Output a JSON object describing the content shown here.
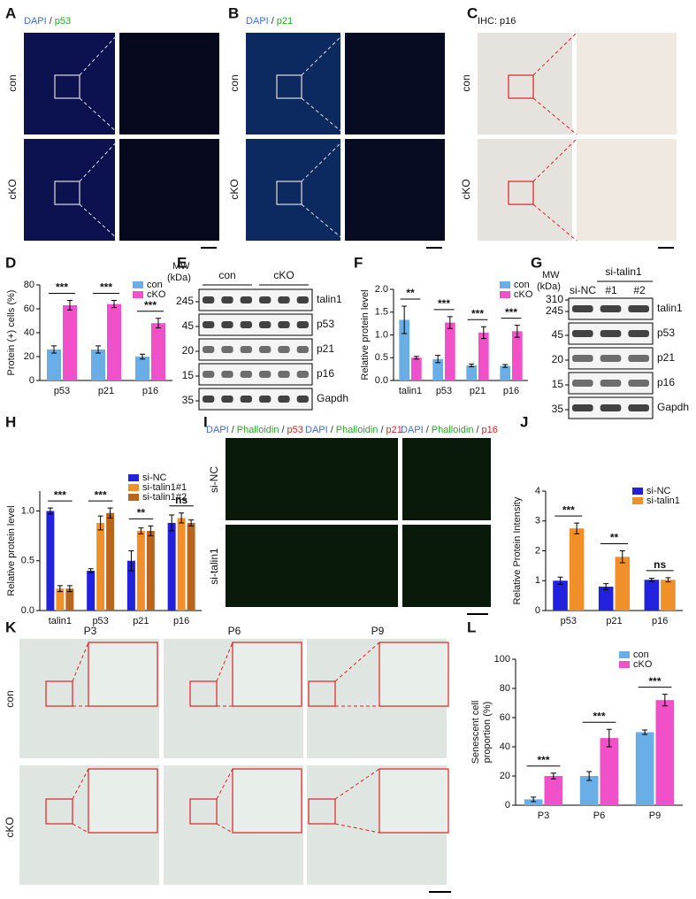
{
  "panel_labels": [
    "A",
    "B",
    "C",
    "D",
    "E",
    "F",
    "G",
    "H",
    "I",
    "J",
    "K",
    "L"
  ],
  "images": {
    "A": {
      "stain": [
        "DAPI",
        "/",
        "p53"
      ],
      "rows": [
        "con",
        "cKO"
      ]
    },
    "B": {
      "stain": [
        "DAPI",
        "/",
        "p21"
      ],
      "rows": [
        "con",
        "cKO"
      ]
    },
    "C": {
      "stain": [
        "IHC: p16"
      ],
      "rows": [
        "con",
        "cKO"
      ]
    },
    "I": {
      "columns": [
        [
          "DAPI",
          "/",
          "Phalloidin",
          "/",
          "p53"
        ],
        [
          "DAPI",
          "/",
          "Phalloidin",
          "/",
          "p21"
        ],
        [
          "DAPI",
          "/",
          "Phalloidin",
          "/",
          "p16"
        ]
      ],
      "rows": [
        "si-NC",
        "si-talin1"
      ]
    },
    "K": {
      "columns": [
        "P3",
        "P6",
        "P9"
      ],
      "rows": [
        "con",
        "cKO"
      ]
    }
  },
  "blots": [
    {
      "mw_header": [
        "MW",
        "(kDa)"
      ],
      "groups": [
        "con",
        "cKO"
      ],
      "mw": [
        245,
        45,
        20,
        15,
        35
      ],
      "bands": [
        "talin1",
        "p53",
        "p21",
        "p16",
        "Gapdh"
      ]
    },
    {
      "mw_header": [
        "MW",
        "(kDa)"
      ],
      "group": "si-talin1",
      "lanes": [
        "si-NC",
        "#1",
        "#2"
      ],
      "mw": [
        310,
        245,
        45,
        20,
        15,
        35
      ],
      "bands": [
        "talin1",
        "p53",
        "p21",
        "p16",
        "Gapdh"
      ]
    }
  ],
  "chart_data": [
    {
      "type": "bar",
      "ylabel": "Protein (+) cells (%)",
      "categories": [
        "p53",
        "p21",
        "p16"
      ],
      "series": [
        {
          "name": "con",
          "color": "#6aaee8",
          "values": [
            26,
            26,
            20
          ],
          "errors": [
            3,
            3,
            2
          ]
        },
        {
          "name": "cKO",
          "color": "#f050c8",
          "values": [
            63,
            64,
            48
          ],
          "errors": [
            4,
            3,
            4
          ]
        }
      ],
      "ylim": [
        0,
        80
      ],
      "yticks": [
        0,
        20,
        40,
        60,
        80
      ],
      "significance": [
        "***",
        "***",
        "***"
      ]
    },
    {
      "type": "bar",
      "ylabel": "Relative protein level",
      "categories": [
        "talin1",
        "p53",
        "p21",
        "p16"
      ],
      "series": [
        {
          "name": "con",
          "color": "#6aaee8",
          "values": [
            1.33,
            0.47,
            0.33,
            0.32
          ],
          "errors": [
            0.3,
            0.08,
            0.03,
            0.03
          ]
        },
        {
          "name": "cKO",
          "color": "#f050c8",
          "values": [
            0.5,
            1.27,
            1.05,
            1.08
          ],
          "errors": [
            0.03,
            0.13,
            0.13,
            0.13
          ]
        }
      ],
      "ylim": [
        0,
        2
      ],
      "yticks": [
        {
          "value": 0,
          "label": "0.0"
        },
        0.5,
        {
          "value": 1,
          "label": "1.0"
        },
        1.5,
        {
          "value": 2,
          "label": "2.0"
        }
      ],
      "significance": [
        "**",
        "***",
        "***",
        "***"
      ]
    },
    {
      "type": "bar",
      "ylabel": "Relative protein level",
      "categories": [
        "talin1",
        "p53",
        "p21",
        "p16"
      ],
      "series": [
        {
          "name": "si-NC",
          "color": "#2222dd",
          "values": [
            1.0,
            0.4,
            0.5,
            0.88
          ],
          "errors": [
            0.03,
            0.02,
            0.1,
            0.08
          ]
        },
        {
          "name": "si-talin1#1",
          "color": "#f0902a",
          "values": [
            0.22,
            0.88,
            0.8,
            0.93
          ],
          "errors": [
            0.03,
            0.07,
            0.03,
            0.05
          ]
        },
        {
          "name": "si-talin1#2",
          "color": "#b8661e",
          "values": [
            0.22,
            0.98,
            0.8,
            0.88
          ],
          "errors": [
            0.03,
            0.05,
            0.05,
            0.03
          ]
        }
      ],
      "ylim": [
        0,
        1.2
      ],
      "yticks": [
        {
          "value": 0,
          "label": "0.0"
        },
        0.5,
        {
          "value": 1,
          "label": "1.0"
        }
      ],
      "significance": [
        "***",
        "***",
        "**",
        "ns"
      ]
    },
    {
      "type": "bar",
      "ylabel": "Relative Protein Intensity",
      "categories": [
        "p53",
        "p21",
        "p16"
      ],
      "series": [
        {
          "name": "si-NC",
          "color": "#2222dd",
          "values": [
            1.0,
            0.8,
            1.03
          ],
          "errors": [
            0.12,
            0.1,
            0.05
          ]
        },
        {
          "name": "si-talin1",
          "color": "#f0902a",
          "values": [
            2.75,
            1.8,
            1.03
          ],
          "errors": [
            0.18,
            0.2,
            0.07
          ]
        }
      ],
      "ylim": [
        0,
        4
      ],
      "yticks": [
        0,
        1,
        2,
        3,
        4
      ],
      "significance": [
        "***",
        "**",
        "ns"
      ]
    },
    {
      "type": "bar",
      "ylabel": [
        "Senescent cell",
        "proportion (%)"
      ],
      "categories": [
        "P3",
        "P6",
        "P9"
      ],
      "series": [
        {
          "name": "con",
          "color": "#6aaee8",
          "values": [
            4,
            20,
            50
          ],
          "errors": [
            1.5,
            3,
            1.5
          ]
        },
        {
          "name": "cKO",
          "color": "#f050c8",
          "values": [
            20,
            46,
            72
          ],
          "errors": [
            2,
            6,
            4
          ]
        }
      ],
      "ylim": [
        0,
        100
      ],
      "yticks": [
        0,
        20,
        40,
        60,
        80,
        100
      ],
      "significance": [
        "***",
        "***",
        "***"
      ]
    }
  ]
}
